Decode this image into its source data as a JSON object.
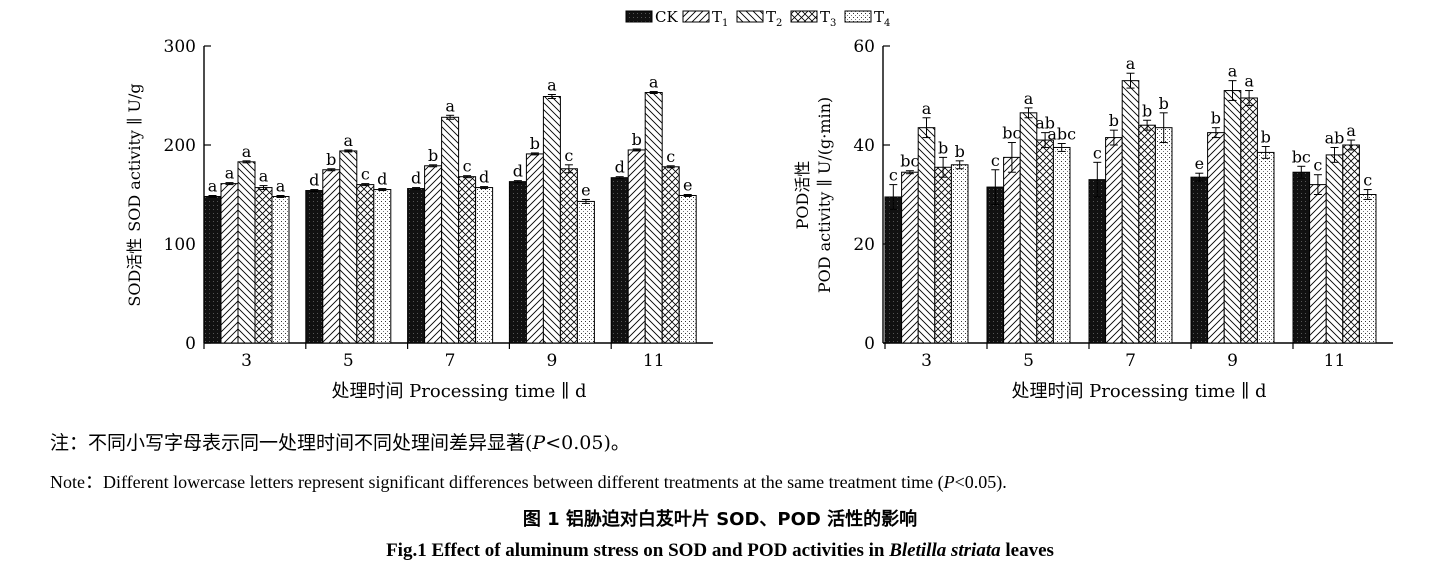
{
  "legend": {
    "entries": [
      "CK",
      "T",
      "T",
      "T",
      "T"
    ],
    "subscripts": [
      "",
      "1",
      "2",
      "3",
      "4"
    ]
  },
  "chart_data": [
    {
      "type": "bar",
      "title": "",
      "ylabel_cn": "SOD活性",
      "ylabel_en": "SOD activity ∥ U/g",
      "xlabel": "处理时间 Processing time ∥ d",
      "categories": [
        "3",
        "5",
        "7",
        "9",
        "11"
      ],
      "ylim": [
        0,
        300
      ],
      "yticks": [
        0,
        100,
        200,
        300
      ],
      "series": [
        {
          "name": "CK",
          "values": [
            148,
            154,
            156,
            163,
            167
          ],
          "errors": [
            1,
            1,
            1,
            1,
            1
          ],
          "letters": [
            "a",
            "d",
            "d",
            "d",
            "d"
          ]
        },
        {
          "name": "T1",
          "values": [
            161,
            175,
            179,
            191,
            195
          ],
          "errors": [
            1,
            1,
            1,
            1,
            1
          ],
          "letters": [
            "a",
            "b",
            "b",
            "b",
            "b"
          ]
        },
        {
          "name": "T2",
          "values": [
            183,
            194,
            228,
            249,
            253
          ],
          "errors": [
            1,
            1,
            2,
            2,
            1
          ],
          "letters": [
            "a",
            "a",
            "a",
            "a",
            "a"
          ]
        },
        {
          "name": "T3",
          "values": [
            157,
            160,
            168,
            176,
            178
          ],
          "errors": [
            2,
            1,
            1,
            4,
            1
          ],
          "letters": [
            "a",
            "c",
            "c",
            "c",
            "c"
          ]
        },
        {
          "name": "T4",
          "values": [
            148,
            155,
            157,
            143,
            149
          ],
          "errors": [
            1,
            1,
            1,
            2,
            1
          ],
          "letters": [
            "a",
            "d",
            "d",
            "e",
            "e"
          ]
        }
      ]
    },
    {
      "type": "bar",
      "title": "",
      "ylabel_cn": "POD活性",
      "ylabel_en": "POD activity ∥ U/(g·min)",
      "xlabel": "处理时间 Processing time ∥ d",
      "categories": [
        "3",
        "5",
        "7",
        "9",
        "11"
      ],
      "ylim": [
        0,
        60
      ],
      "yticks": [
        0,
        20,
        40,
        60
      ],
      "series": [
        {
          "name": "CK",
          "values": [
            29.5,
            31.5,
            33,
            33.5,
            34.5
          ],
          "errors": [
            2.5,
            3.5,
            3.5,
            0.8,
            1.2
          ],
          "letters": [
            "c",
            "c",
            "c",
            "e",
            "bc"
          ]
        },
        {
          "name": "T1",
          "values": [
            34.5,
            37.5,
            41.5,
            42.5,
            32
          ],
          "errors": [
            0.3,
            3,
            1.5,
            1,
            2
          ],
          "letters": [
            "bc",
            "bc",
            "b",
            "b",
            "c"
          ]
        },
        {
          "name": "T2",
          "values": [
            43.5,
            46.5,
            53,
            51,
            38
          ],
          "errors": [
            2,
            1,
            1.5,
            2,
            1.5
          ],
          "letters": [
            "a",
            "a",
            "a",
            "a",
            "ab"
          ]
        },
        {
          "name": "T3",
          "values": [
            35.5,
            41,
            44,
            49.5,
            40
          ],
          "errors": [
            2,
            1.5,
            1,
            1.5,
            1
          ],
          "letters": [
            "b",
            "ab",
            "b",
            "a",
            "a"
          ]
        },
        {
          "name": "T4",
          "values": [
            36,
            39.5,
            43.5,
            38.5,
            30
          ],
          "errors": [
            0.8,
            0.8,
            3,
            1.2,
            1
          ],
          "letters": [
            "b",
            "abc",
            "b",
            "b",
            "c"
          ]
        }
      ]
    }
  ],
  "note_cn_prefix": "注：不同小写字母表示同一处理时间不同处理间差异显著(",
  "note_cn_p": "P",
  "note_cn_suffix": "<0.05)。",
  "note_en_prefix": "Note：Different lowercase letters represent significant differences between different treatments at the same treatment time (",
  "note_en_p": "P",
  "note_en_suffix": "<0.05).",
  "caption_cn": "图 1   铝胁迫对白芨叶片 SOD、POD 活性的影响",
  "caption_en_prefix": "Fig.1   Effect of aluminum stress on SOD and POD activities in ",
  "caption_en_italic": "Bletilla striata",
  "caption_en_suffix": " leaves",
  "colors": {
    "ink": "#000000",
    "background": "#ffffff"
  }
}
